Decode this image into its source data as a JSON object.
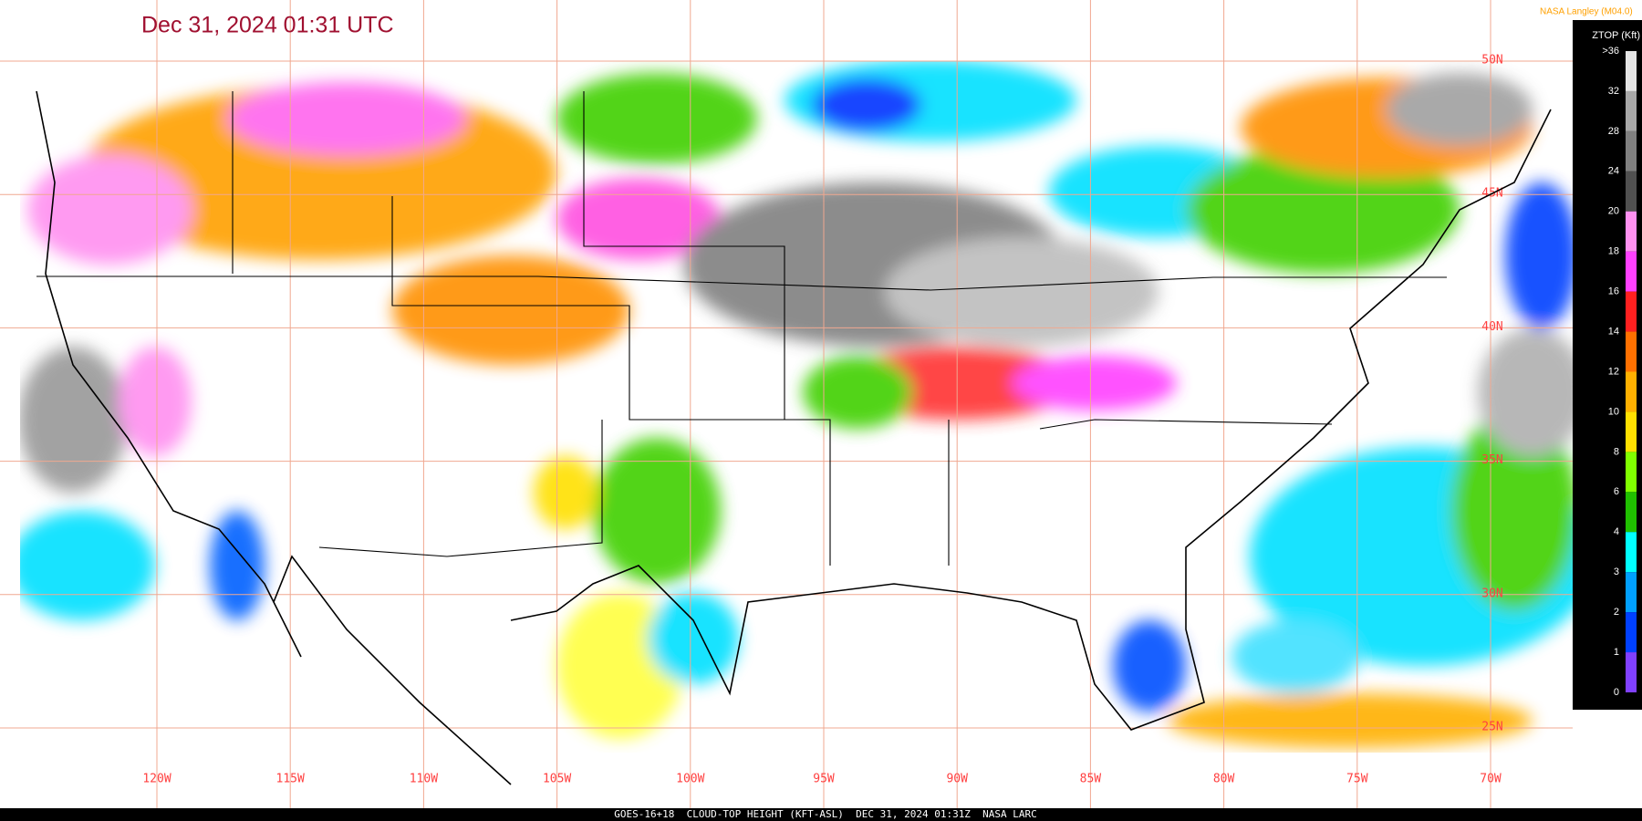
{
  "header": {
    "title": "Dec 31, 2024 01:31 UTC",
    "credit": "NASA Langley (M04.0)"
  },
  "map": {
    "longitude_labels": [
      "120W",
      "115W",
      "110W",
      "105W",
      "100W",
      "95W",
      "90W",
      "85W",
      "80W",
      "75W",
      "70W"
    ],
    "latitude_labels": [
      "50N",
      "45N",
      "40N",
      "35N",
      "30N",
      "25N"
    ]
  },
  "legend": {
    "title": "ZTOP (Kft)",
    "ticks": [
      ">36",
      "32",
      "28",
      "24",
      "20",
      "18",
      "16",
      "14",
      "12",
      "10",
      "8",
      "6",
      "4",
      "3",
      "2",
      "1",
      "0"
    ],
    "colors": [
      "#e4e4e4",
      "#a8a8a8",
      "#808080",
      "#505050",
      "#ff90f0",
      "#ff40ff",
      "#ff2020",
      "#ff7000",
      "#ffb000",
      "#ffe000",
      "#80ff00",
      "#20c000",
      "#00ffff",
      "#00a0ff",
      "#0040ff",
      "#8040ff"
    ]
  },
  "footer": {
    "caption": "GOES-16+18  CLOUD-TOP HEIGHT (KFT-ASL)  DEC 31, 2024 01:31Z  NASA LARC"
  }
}
